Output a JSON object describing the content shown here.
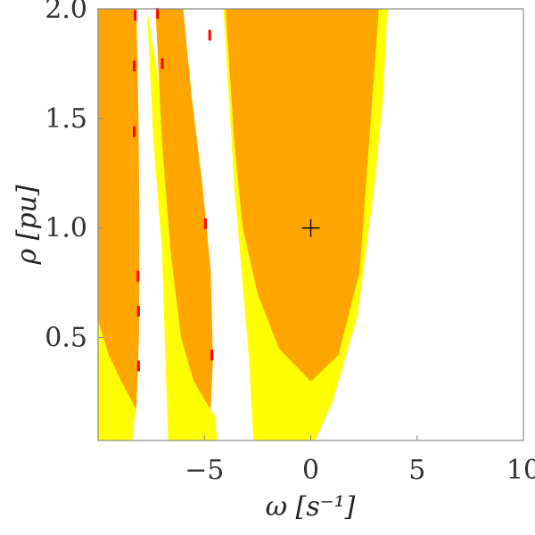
{
  "chart_data": {
    "type": "heatmap",
    "xlabel": "ω [s⁻¹]",
    "ylabel": "ρ [pu]",
    "xlim": [
      -10,
      10
    ],
    "ylim": [
      0.03,
      2.0
    ],
    "xticks": [
      -5,
      0,
      5,
      10
    ],
    "xtick_labels": [
      "−5",
      "0",
      "5",
      "10"
    ],
    "yticks": [
      0.5,
      1.0,
      1.5,
      2.0
    ],
    "ytick_labels": [
      "0.5",
      "1.0",
      "1.5",
      "2.0"
    ],
    "grid": false,
    "legend": "none",
    "colors": {
      "orange": "#ffa500",
      "yellow": "#ffff00",
      "red": "#ff0000",
      "background": "#ffffff",
      "frame": "#888888"
    },
    "marker": {
      "symbol": "+",
      "x": 0,
      "y": 1.0,
      "color": "#000000"
    },
    "regions": [
      {
        "color": "orange",
        "vertex": [
          -8.2,
          0.17
        ],
        "left": [
          [
            -8.2,
            0.17
          ],
          [
            -8.9,
            0.3
          ],
          [
            -9.5,
            0.42
          ],
          [
            -10.0,
            0.58
          ],
          [
            -10.0,
            2.0
          ]
        ],
        "right": [
          [
            -8.2,
            0.17
          ],
          [
            -8.08,
            0.5
          ],
          [
            -8.06,
            1.0
          ],
          [
            -8.1,
            1.5
          ],
          [
            -8.2,
            2.0
          ]
        ]
      },
      {
        "color": "orange",
        "vertex": [
          -4.7,
          0.17
        ],
        "left": [
          [
            -4.7,
            0.17
          ],
          [
            -5.5,
            0.3
          ],
          [
            -6.1,
            0.5
          ],
          [
            -6.6,
            0.9
          ],
          [
            -7.0,
            1.4
          ],
          [
            -7.3,
            2.0
          ]
        ],
        "right": [
          [
            -4.7,
            0.17
          ],
          [
            -4.6,
            0.4
          ],
          [
            -4.7,
            0.8
          ],
          [
            -5.1,
            1.2
          ],
          [
            -5.6,
            1.6
          ],
          [
            -6.0,
            2.0
          ]
        ]
      },
      {
        "color": "orange",
        "vertex": [
          0.0,
          0.3
        ],
        "left": [
          [
            0.0,
            0.3
          ],
          [
            -1.5,
            0.45
          ],
          [
            -2.5,
            0.7
          ],
          [
            -3.2,
            1.0
          ],
          [
            -3.6,
            1.4
          ],
          [
            -4.0,
            2.0
          ]
        ],
        "right": [
          [
            0.0,
            0.3
          ],
          [
            1.3,
            0.42
          ],
          [
            2.3,
            0.8
          ],
          [
            2.6,
            1.2
          ],
          [
            2.9,
            1.6
          ],
          [
            3.2,
            2.0
          ]
        ]
      },
      {
        "color": "yellow",
        "left": [
          [
            -10.0,
            0.03
          ],
          [
            -10.0,
            2.0
          ]
        ],
        "right": [
          [
            -8.4,
            0.03
          ],
          [
            -8.3,
            0.12
          ],
          [
            -8.2,
            0.17
          ]
        ]
      },
      {
        "color": "yellow",
        "left": [
          [
            -6.7,
            0.03
          ],
          [
            -6.8,
            0.3
          ],
          [
            -7.0,
            0.9
          ],
          [
            -7.4,
            1.4
          ],
          [
            -7.7,
            2.0
          ]
        ],
        "right": [
          [
            -4.4,
            0.03
          ],
          [
            -4.5,
            0.14
          ],
          [
            -4.7,
            0.17
          ]
        ]
      },
      {
        "color": "yellow",
        "left": [
          [
            -2.7,
            0.03
          ],
          [
            -2.9,
            0.4
          ],
          [
            -3.6,
            1.2
          ],
          [
            -4.1,
            2.0
          ]
        ],
        "right": [
          [
            0.2,
            0.03
          ],
          [
            1.0,
            0.2
          ],
          [
            2.2,
            0.6
          ],
          [
            3.0,
            1.2
          ],
          [
            3.4,
            1.6
          ],
          [
            3.6,
            2.0
          ]
        ]
      }
    ],
    "red_specks": [
      {
        "x": -8.25,
        "y": 1.97
      },
      {
        "x": -8.3,
        "y": 1.74
      },
      {
        "x": -8.3,
        "y": 1.44
      },
      {
        "x": -8.12,
        "y": 0.78
      },
      {
        "x": -8.1,
        "y": 0.62
      },
      {
        "x": -8.1,
        "y": 0.37
      },
      {
        "x": -7.2,
        "y": 1.98
      },
      {
        "x": -6.98,
        "y": 1.75
      },
      {
        "x": -4.75,
        "y": 1.88
      },
      {
        "x": -4.95,
        "y": 1.02
      },
      {
        "x": -4.65,
        "y": 0.42
      }
    ]
  }
}
